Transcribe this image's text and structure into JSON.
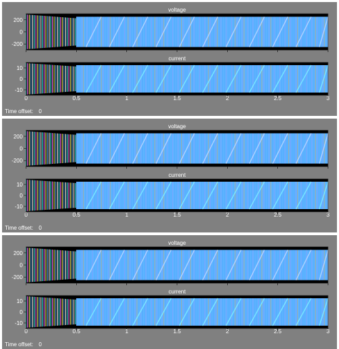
{
  "scopes": [
    {
      "time_offset_label": "Time offset:",
      "time_offset_value": "0"
    },
    {
      "time_offset_label": "Time offset:",
      "time_offset_value": "0"
    },
    {
      "time_offset_label": "Time offset:",
      "time_offset_value": "0"
    }
  ],
  "chart_data": [
    {
      "type": "line",
      "title": "voltage",
      "xlim": [
        0,
        3
      ],
      "ylim": [
        -300,
        300
      ],
      "yticks": [
        -200,
        0,
        200
      ],
      "xticks": [
        0,
        0.5,
        1,
        1.5,
        2,
        2.5,
        3
      ],
      "grid": false,
      "signal": {
        "steady_amplitude": 250,
        "transient_end": 0.5,
        "color": "#5fb6ff"
      }
    },
    {
      "type": "line",
      "title": "current",
      "xlim": [
        0,
        3
      ],
      "ylim": [
        -15,
        15
      ],
      "yticks": [
        -10,
        0,
        10
      ],
      "xticks": [
        0,
        0.5,
        1,
        1.5,
        2,
        2.5,
        3
      ],
      "xticklabels": [
        "0",
        "0.5",
        "1",
        "1.5",
        "2",
        "2.5",
        "3"
      ],
      "grid": false,
      "signal": {
        "steady_amplitude": 12.5,
        "transient_end": 0.5,
        "color": "#5fb6ff"
      }
    }
  ],
  "colors": {
    "window_bg": "#808080",
    "axes_bg": "#000000",
    "trace_main": "#5fb6ff",
    "trace_alt1": "#ff70ff",
    "trace_alt2": "#ffff70",
    "trace_alt3": "#40ffff",
    "text": "#ffffff"
  }
}
